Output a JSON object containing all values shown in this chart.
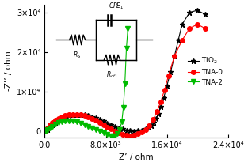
{
  "xlabel": "Z’ / ohm",
  "ylabel": "-Z’’ / ohm",
  "xlim": [
    0,
    24000
  ],
  "ylim": [
    -1500,
    32000
  ],
  "xticks": [
    0,
    8000,
    16000,
    24000
  ],
  "yticks": [
    0,
    10000,
    20000,
    30000
  ],
  "xtick_labels": [
    "0.0",
    "8.0×10³",
    "1.6×10⁴",
    "2.4×10⁴"
  ],
  "ytick_labels": [
    "0",
    "1×10⁴",
    "2×10⁴",
    "3×10⁴"
  ],
  "TiO2_color": "#000000",
  "TNA0_color": "#ff0000",
  "TNA2_color": "#00bb00",
  "TiO2_x": [
    50,
    200,
    400,
    700,
    1000,
    1400,
    1800,
    2200,
    2700,
    3200,
    3700,
    4200,
    4700,
    5200,
    5700,
    6200,
    6700,
    7200,
    7700,
    8200,
    8700,
    9200,
    9700,
    10200,
    10700,
    11200,
    11700,
    12200,
    12700,
    13200,
    13700,
    14000,
    14300,
    14600,
    14900,
    15200,
    15600,
    16000,
    16500,
    17000,
    17500,
    18000,
    19000,
    20000,
    21000
  ],
  "TiO2_y": [
    50,
    200,
    500,
    1000,
    1600,
    2200,
    2800,
    3300,
    3700,
    4000,
    4200,
    4300,
    4300,
    4200,
    4000,
    3700,
    3400,
    3000,
    2600,
    2100,
    1700,
    1300,
    900,
    600,
    350,
    200,
    150,
    200,
    350,
    600,
    1000,
    1500,
    2200,
    3200,
    4500,
    6200,
    8500,
    11500,
    15000,
    19000,
    23000,
    27000,
    30000,
    30500,
    29500
  ],
  "TNA0_x": [
    50,
    200,
    400,
    700,
    1000,
    1400,
    1800,
    2200,
    2700,
    3200,
    3700,
    4200,
    4700,
    5200,
    5700,
    6200,
    6700,
    7200,
    7700,
    8200,
    8700,
    9200,
    9700,
    10200,
    10700,
    11200,
    11700,
    12200,
    12700,
    13200,
    13700,
    14200,
    14700,
    15200,
    15700,
    16200,
    17000,
    18000,
    19000,
    20000,
    21000
  ],
  "TNA0_y": [
    100,
    400,
    900,
    1600,
    2200,
    2800,
    3300,
    3700,
    4000,
    4200,
    4300,
    4300,
    4200,
    4000,
    3700,
    3300,
    2800,
    2300,
    1700,
    1100,
    600,
    100,
    -300,
    -700,
    -900,
    -1000,
    -800,
    -500,
    -100,
    500,
    1500,
    3000,
    5000,
    7500,
    10500,
    14000,
    19000,
    23000,
    26000,
    27000,
    26000
  ],
  "TNA2_x": [
    50,
    200,
    400,
    700,
    1000,
    1400,
    1800,
    2200,
    2700,
    3200,
    3700,
    4200,
    4700,
    5200,
    5700,
    6200,
    6700,
    7200,
    7700,
    8200,
    8700,
    9000,
    9200,
    9500,
    9800,
    10100,
    10300,
    10500,
    10700,
    10900
  ],
  "TNA2_y": [
    50,
    150,
    400,
    800,
    1300,
    1800,
    2200,
    2500,
    2700,
    2700,
    2600,
    2400,
    2100,
    1700,
    1300,
    900,
    500,
    100,
    -300,
    -700,
    -1000,
    -1100,
    -1000,
    -500,
    400,
    2500,
    6000,
    12000,
    21000,
    26000
  ]
}
